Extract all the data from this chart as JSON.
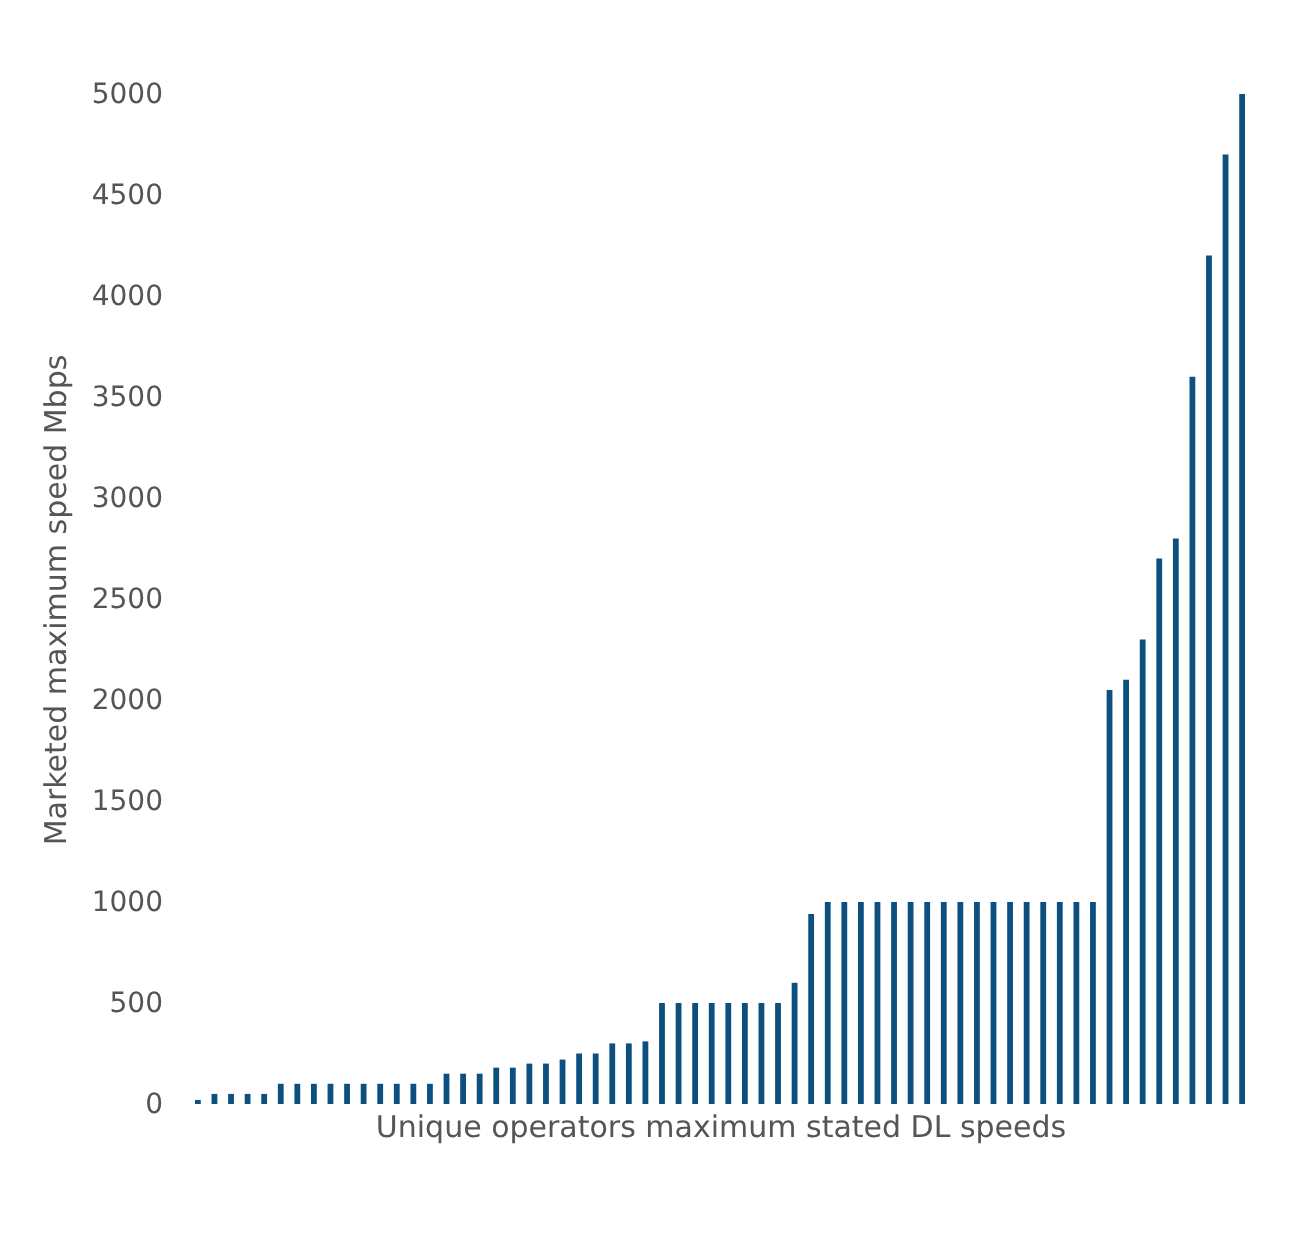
{
  "chart_data": {
    "type": "bar",
    "xlabel": "Unique operators maximum stated DL speeds",
    "ylabel": "Marketed maximum speed Mbps",
    "categories": [
      null,
      null,
      null,
      null,
      null,
      null,
      null,
      null,
      null,
      null,
      null,
      null,
      null,
      null,
      null,
      null,
      null,
      null,
      null,
      null,
      null,
      null,
      null,
      null,
      null,
      null,
      null,
      null,
      null,
      null,
      null,
      null,
      null,
      null,
      null,
      null,
      null,
      null,
      null,
      null,
      null,
      null,
      null,
      null,
      null,
      null,
      null,
      null,
      null,
      null,
      null,
      null,
      null,
      null,
      null,
      null,
      null,
      null,
      null,
      null,
      null,
      null,
      null,
      null
    ],
    "values": [
      20,
      50,
      50,
      50,
      50,
      100,
      100,
      100,
      100,
      100,
      100,
      100,
      100,
      100,
      100,
      150,
      150,
      150,
      180,
      180,
      200,
      200,
      220,
      250,
      250,
      300,
      300,
      310,
      500,
      500,
      500,
      500,
      500,
      500,
      500,
      500,
      600,
      940,
      1000,
      1000,
      1000,
      1000,
      1000,
      1000,
      1000,
      1000,
      1000,
      1000,
      1000,
      1000,
      1000,
      1000,
      1000,
      1000,
      1000,
      2050,
      2100,
      2300,
      2700,
      2800,
      3600,
      4200,
      4700,
      5000
    ],
    "color": "#0d4f7f",
    "ylim": [
      0,
      5000
    ],
    "yticks": [
      0,
      500,
      1000,
      1500,
      2000,
      2500,
      3000,
      3500,
      4000,
      4500,
      5000
    ],
    "grid": false,
    "tick_labels": "y"
  }
}
